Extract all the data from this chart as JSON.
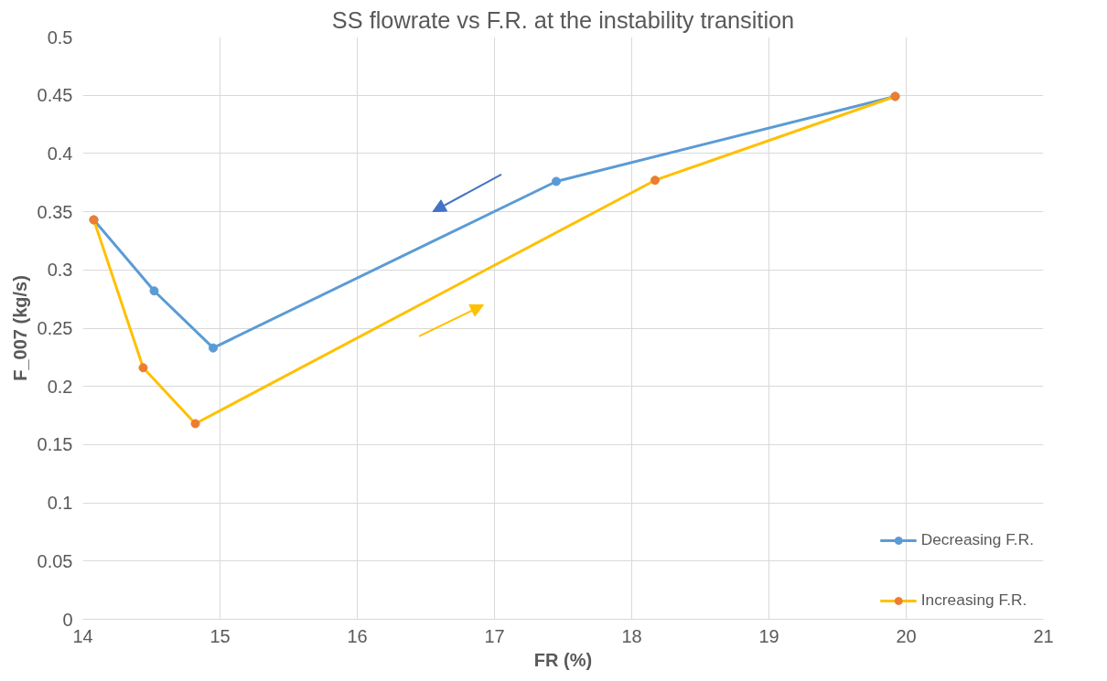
{
  "chart_data": {
    "type": "line",
    "title": "SS flowrate vs F.R. at the instability transition",
    "xlabel": "FR (%)",
    "ylabel": "F_007 (kg/s)",
    "xlim": [
      14,
      21
    ],
    "xticks": [
      14,
      15,
      16,
      17,
      18,
      19,
      20,
      21
    ],
    "ylim": [
      0,
      0.5
    ],
    "yticks": [
      0,
      0.05,
      0.1,
      0.15,
      0.2,
      0.25,
      0.3,
      0.35,
      0.4,
      0.45,
      0.5
    ],
    "grid": true,
    "legend": "bottom right",
    "marker": "circle",
    "series": [
      {
        "name": "Decreasing F.R.",
        "color": "#5b9bd5",
        "x": [
          14.08,
          14.52,
          14.95,
          17.45,
          19.92
        ],
        "values": [
          0.343,
          0.282,
          0.233,
          0.376,
          0.449
        ]
      },
      {
        "name": "Increasing F.R.",
        "color": "#ffc000",
        "colors": [
          "#ed7d31",
          "#ed7d31",
          "#ed7d31",
          "#ed7d31",
          "#ed7d31"
        ],
        "x": [
          14.08,
          14.44,
          14.82,
          18.17,
          19.92
        ],
        "values": [
          0.343,
          0.216,
          0.168,
          0.377,
          0.449
        ]
      }
    ]
  }
}
